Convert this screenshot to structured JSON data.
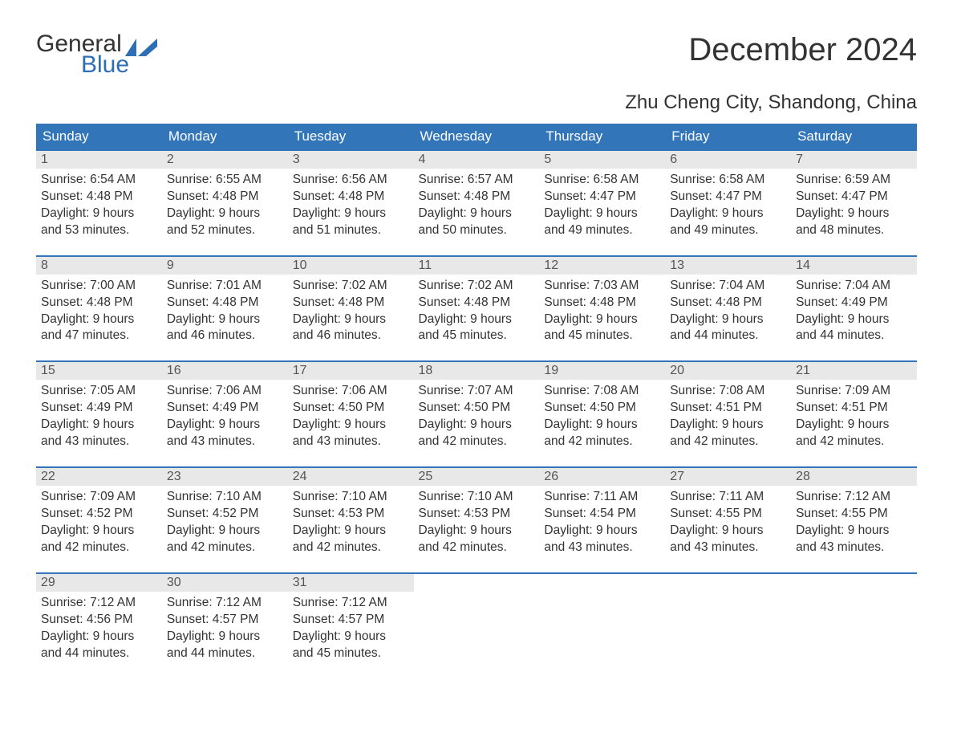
{
  "logo": {
    "text_top": "General",
    "text_bottom": "Blue",
    "flag_color": "#2d6fb5",
    "text_color_top": "#333333",
    "text_color_bottom": "#2d6fb5"
  },
  "title": "December 2024",
  "subtitle": "Zhu Cheng City, Shandong, China",
  "colors": {
    "header_bg": "#3275b9",
    "header_text": "#ffffff",
    "daynum_bg": "#e8e8e8",
    "border_top": "#3275b9",
    "body_text": "#333333",
    "daynum_text": "#555555",
    "page_bg": "#ffffff"
  },
  "fonts": {
    "title_size": 40,
    "subtitle_size": 24,
    "dayheader_size": 17,
    "daynum_size": 16,
    "detail_size": 15.5
  },
  "weekdays": [
    "Sunday",
    "Monday",
    "Tuesday",
    "Wednesday",
    "Thursday",
    "Friday",
    "Saturday"
  ],
  "weeks": [
    [
      {
        "num": "1",
        "sunrise": "Sunrise: 6:54 AM",
        "sunset": "Sunset: 4:48 PM",
        "day1": "Daylight: 9 hours",
        "day2": "and 53 minutes."
      },
      {
        "num": "2",
        "sunrise": "Sunrise: 6:55 AM",
        "sunset": "Sunset: 4:48 PM",
        "day1": "Daylight: 9 hours",
        "day2": "and 52 minutes."
      },
      {
        "num": "3",
        "sunrise": "Sunrise: 6:56 AM",
        "sunset": "Sunset: 4:48 PM",
        "day1": "Daylight: 9 hours",
        "day2": "and 51 minutes."
      },
      {
        "num": "4",
        "sunrise": "Sunrise: 6:57 AM",
        "sunset": "Sunset: 4:48 PM",
        "day1": "Daylight: 9 hours",
        "day2": "and 50 minutes."
      },
      {
        "num": "5",
        "sunrise": "Sunrise: 6:58 AM",
        "sunset": "Sunset: 4:47 PM",
        "day1": "Daylight: 9 hours",
        "day2": "and 49 minutes."
      },
      {
        "num": "6",
        "sunrise": "Sunrise: 6:58 AM",
        "sunset": "Sunset: 4:47 PM",
        "day1": "Daylight: 9 hours",
        "day2": "and 49 minutes."
      },
      {
        "num": "7",
        "sunrise": "Sunrise: 6:59 AM",
        "sunset": "Sunset: 4:47 PM",
        "day1": "Daylight: 9 hours",
        "day2": "and 48 minutes."
      }
    ],
    [
      {
        "num": "8",
        "sunrise": "Sunrise: 7:00 AM",
        "sunset": "Sunset: 4:48 PM",
        "day1": "Daylight: 9 hours",
        "day2": "and 47 minutes."
      },
      {
        "num": "9",
        "sunrise": "Sunrise: 7:01 AM",
        "sunset": "Sunset: 4:48 PM",
        "day1": "Daylight: 9 hours",
        "day2": "and 46 minutes."
      },
      {
        "num": "10",
        "sunrise": "Sunrise: 7:02 AM",
        "sunset": "Sunset: 4:48 PM",
        "day1": "Daylight: 9 hours",
        "day2": "and 46 minutes."
      },
      {
        "num": "11",
        "sunrise": "Sunrise: 7:02 AM",
        "sunset": "Sunset: 4:48 PM",
        "day1": "Daylight: 9 hours",
        "day2": "and 45 minutes."
      },
      {
        "num": "12",
        "sunrise": "Sunrise: 7:03 AM",
        "sunset": "Sunset: 4:48 PM",
        "day1": "Daylight: 9 hours",
        "day2": "and 45 minutes."
      },
      {
        "num": "13",
        "sunrise": "Sunrise: 7:04 AM",
        "sunset": "Sunset: 4:48 PM",
        "day1": "Daylight: 9 hours",
        "day2": "and 44 minutes."
      },
      {
        "num": "14",
        "sunrise": "Sunrise: 7:04 AM",
        "sunset": "Sunset: 4:49 PM",
        "day1": "Daylight: 9 hours",
        "day2": "and 44 minutes."
      }
    ],
    [
      {
        "num": "15",
        "sunrise": "Sunrise: 7:05 AM",
        "sunset": "Sunset: 4:49 PM",
        "day1": "Daylight: 9 hours",
        "day2": "and 43 minutes."
      },
      {
        "num": "16",
        "sunrise": "Sunrise: 7:06 AM",
        "sunset": "Sunset: 4:49 PM",
        "day1": "Daylight: 9 hours",
        "day2": "and 43 minutes."
      },
      {
        "num": "17",
        "sunrise": "Sunrise: 7:06 AM",
        "sunset": "Sunset: 4:50 PM",
        "day1": "Daylight: 9 hours",
        "day2": "and 43 minutes."
      },
      {
        "num": "18",
        "sunrise": "Sunrise: 7:07 AM",
        "sunset": "Sunset: 4:50 PM",
        "day1": "Daylight: 9 hours",
        "day2": "and 42 minutes."
      },
      {
        "num": "19",
        "sunrise": "Sunrise: 7:08 AM",
        "sunset": "Sunset: 4:50 PM",
        "day1": "Daylight: 9 hours",
        "day2": "and 42 minutes."
      },
      {
        "num": "20",
        "sunrise": "Sunrise: 7:08 AM",
        "sunset": "Sunset: 4:51 PM",
        "day1": "Daylight: 9 hours",
        "day2": "and 42 minutes."
      },
      {
        "num": "21",
        "sunrise": "Sunrise: 7:09 AM",
        "sunset": "Sunset: 4:51 PM",
        "day1": "Daylight: 9 hours",
        "day2": "and 42 minutes."
      }
    ],
    [
      {
        "num": "22",
        "sunrise": "Sunrise: 7:09 AM",
        "sunset": "Sunset: 4:52 PM",
        "day1": "Daylight: 9 hours",
        "day2": "and 42 minutes."
      },
      {
        "num": "23",
        "sunrise": "Sunrise: 7:10 AM",
        "sunset": "Sunset: 4:52 PM",
        "day1": "Daylight: 9 hours",
        "day2": "and 42 minutes."
      },
      {
        "num": "24",
        "sunrise": "Sunrise: 7:10 AM",
        "sunset": "Sunset: 4:53 PM",
        "day1": "Daylight: 9 hours",
        "day2": "and 42 minutes."
      },
      {
        "num": "25",
        "sunrise": "Sunrise: 7:10 AM",
        "sunset": "Sunset: 4:53 PM",
        "day1": "Daylight: 9 hours",
        "day2": "and 42 minutes."
      },
      {
        "num": "26",
        "sunrise": "Sunrise: 7:11 AM",
        "sunset": "Sunset: 4:54 PM",
        "day1": "Daylight: 9 hours",
        "day2": "and 43 minutes."
      },
      {
        "num": "27",
        "sunrise": "Sunrise: 7:11 AM",
        "sunset": "Sunset: 4:55 PM",
        "day1": "Daylight: 9 hours",
        "day2": "and 43 minutes."
      },
      {
        "num": "28",
        "sunrise": "Sunrise: 7:12 AM",
        "sunset": "Sunset: 4:55 PM",
        "day1": "Daylight: 9 hours",
        "day2": "and 43 minutes."
      }
    ],
    [
      {
        "num": "29",
        "sunrise": "Sunrise: 7:12 AM",
        "sunset": "Sunset: 4:56 PM",
        "day1": "Daylight: 9 hours",
        "day2": "and 44 minutes."
      },
      {
        "num": "30",
        "sunrise": "Sunrise: 7:12 AM",
        "sunset": "Sunset: 4:57 PM",
        "day1": "Daylight: 9 hours",
        "day2": "and 44 minutes."
      },
      {
        "num": "31",
        "sunrise": "Sunrise: 7:12 AM",
        "sunset": "Sunset: 4:57 PM",
        "day1": "Daylight: 9 hours",
        "day2": "and 45 minutes."
      },
      null,
      null,
      null,
      null
    ]
  ]
}
